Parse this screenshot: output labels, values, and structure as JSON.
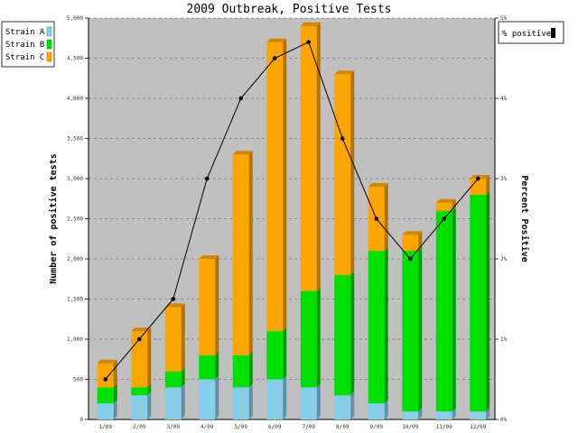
{
  "chart_data": {
    "type": "bar",
    "title": "2009 Outbreak, Positive Tests",
    "ylabel": "Number of positive tests",
    "y2label": "Percent Positive",
    "categories": [
      "1/09",
      "2/09",
      "3/09",
      "4/09",
      "5/09",
      "6/09",
      "7/09",
      "8/09",
      "9/09",
      "10/09",
      "11/09",
      "12/09"
    ],
    "stacked": true,
    "ylim": [
      0,
      5000
    ],
    "y2lim": [
      0,
      5
    ],
    "yticks": [
      "0",
      "500",
      "1,000",
      "1,500",
      "2,000",
      "2,500",
      "3,000",
      "3,500",
      "4,000",
      "4,500",
      "5,000"
    ],
    "y2ticks": [
      "0%",
      "1%",
      "2%",
      "3%",
      "4%",
      "5%"
    ],
    "series": [
      {
        "name": "Strain A",
        "color": "#87ceeb",
        "values": [
          200,
          300,
          400,
          500,
          400,
          500,
          400,
          300,
          200,
          100,
          100,
          100
        ]
      },
      {
        "name": "Strain B",
        "color": "#00e000",
        "values": [
          200,
          100,
          200,
          300,
          400,
          600,
          1200,
          1500,
          1900,
          2000,
          2500,
          2700
        ]
      },
      {
        "name": "Strain C",
        "color": "#ffa500",
        "values": [
          300,
          700,
          800,
          1200,
          2500,
          3600,
          3300,
          2500,
          800,
          200,
          100,
          200
        ]
      }
    ],
    "line_series": {
      "name": "% positive",
      "axis": "right",
      "color": "#000000",
      "values": [
        0.5,
        1.0,
        1.5,
        3.0,
        4.0,
        4.5,
        4.7,
        3.5,
        2.5,
        2.0,
        2.5,
        3.0
      ]
    },
    "grid": true,
    "plot_background": "#c0c0c0",
    "legend_left": "top-left",
    "legend_right": "top-right"
  }
}
